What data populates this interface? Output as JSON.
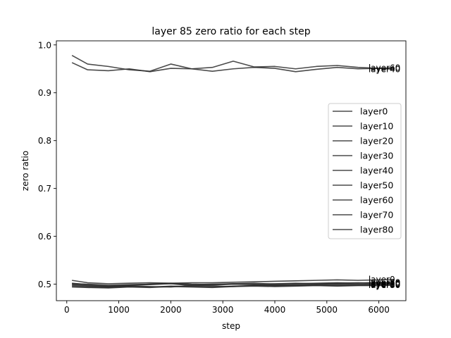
{
  "chart_data": {
    "type": "line",
    "title": "layer 85 zero ratio for each step",
    "xlabel": "step",
    "ylabel": "zero ratio",
    "xlim": [
      -200,
      6520
    ],
    "ylim": [
      0.4655,
      1.0085
    ],
    "xticks": [
      0,
      1000,
      2000,
      3000,
      4000,
      5000,
      6000
    ],
    "yticks": [
      0.5,
      0.6,
      0.7,
      0.8,
      0.9,
      1.0
    ],
    "ytick_labels": [
      "0.5",
      "0.6",
      "0.7",
      "0.8",
      "0.9",
      "1.0"
    ],
    "grid": false,
    "legend_position": "center-right",
    "line_color": "#2b2b2b",
    "series": [
      {
        "name": "layer0",
        "end_label": "layer0",
        "x": [
          100,
          400,
          800,
          1200,
          1600,
          2000,
          2400,
          2800,
          3200,
          3600,
          4000,
          4400,
          4800,
          5200,
          5600,
          6000,
          6300
        ],
        "y": [
          0.508,
          0.503,
          0.501,
          0.502,
          0.503,
          0.502,
          0.503,
          0.503,
          0.504,
          0.505,
          0.506,
          0.507,
          0.508,
          0.509,
          0.508,
          0.509,
          0.51
        ]
      },
      {
        "name": "layer10",
        "end_label": "layer10",
        "x": [
          100,
          400,
          800,
          1200,
          1600,
          2000,
          2400,
          2800,
          3200,
          3600,
          4000,
          4400,
          4800,
          5200,
          5600,
          6000,
          6300
        ],
        "y": [
          0.496,
          0.494,
          0.493,
          0.495,
          0.494,
          0.496,
          0.495,
          0.494,
          0.496,
          0.497,
          0.496,
          0.497,
          0.498,
          0.497,
          0.498,
          0.499,
          0.5
        ]
      },
      {
        "name": "layer20",
        "end_label": "layer20",
        "x": [
          100,
          400,
          800,
          1200,
          1600,
          2000,
          2400,
          2800,
          3200,
          3600,
          4000,
          4400,
          4800,
          5200,
          5600,
          6000,
          6300
        ],
        "y": [
          0.502,
          0.499,
          0.496,
          0.497,
          0.499,
          0.501,
          0.497,
          0.498,
          0.5,
          0.499,
          0.498,
          0.499,
          0.5,
          0.501,
          0.5,
          0.501,
          0.501
        ]
      },
      {
        "name": "layer30",
        "end_label": "layer30",
        "x": [
          100,
          400,
          800,
          1200,
          1600,
          2000,
          2400,
          2800,
          3200,
          3600,
          4000,
          4400,
          4800,
          5200,
          5600,
          6000,
          6300
        ],
        "y": [
          0.5,
          0.497,
          0.495,
          0.498,
          0.5,
          0.502,
          0.5,
          0.499,
          0.501,
          0.502,
          0.5,
          0.501,
          0.502,
          0.503,
          0.502,
          0.504,
          0.503
        ]
      },
      {
        "name": "layer40",
        "end_label": "layer40",
        "x": [
          100,
          400,
          800,
          1200,
          1600,
          2000,
          2400,
          2800,
          3200,
          3600,
          4000,
          4400,
          4800,
          5200,
          5600,
          6000,
          6300
        ],
        "y": [
          0.963,
          0.948,
          0.946,
          0.95,
          0.944,
          0.951,
          0.95,
          0.945,
          0.95,
          0.953,
          0.951,
          0.944,
          0.949,
          0.953,
          0.95,
          0.951,
          0.949
        ]
      },
      {
        "name": "layer50",
        "end_label": "layer50",
        "x": [
          100,
          400,
          800,
          1200,
          1600,
          2000,
          2400,
          2800,
          3200,
          3600,
          4000,
          4400,
          4800,
          5200,
          5600,
          6000,
          6300
        ],
        "y": [
          0.498,
          0.496,
          0.494,
          0.496,
          0.495,
          0.494,
          0.497,
          0.496,
          0.495,
          0.497,
          0.498,
          0.497,
          0.498,
          0.499,
          0.498,
          0.498,
          0.499
        ]
      },
      {
        "name": "layer60",
        "end_label": "layer60",
        "x": [
          100,
          400,
          800,
          1200,
          1600,
          2000,
          2400,
          2800,
          3200,
          3600,
          4000,
          4400,
          4800,
          5200,
          5600,
          6000,
          6300
        ],
        "y": [
          0.978,
          0.96,
          0.955,
          0.948,
          0.945,
          0.96,
          0.95,
          0.953,
          0.966,
          0.954,
          0.955,
          0.95,
          0.955,
          0.957,
          0.953,
          0.951,
          0.952
        ]
      },
      {
        "name": "layer70",
        "end_label": "layer70",
        "x": [
          100,
          400,
          800,
          1200,
          1600,
          2000,
          2400,
          2800,
          3200,
          3600,
          4000,
          4400,
          4800,
          5200,
          5600,
          6000,
          6300
        ],
        "y": [
          0.501,
          0.5,
          0.498,
          0.499,
          0.5,
          0.501,
          0.499,
          0.5,
          0.501,
          0.5,
          0.501,
          0.502,
          0.501,
          0.502,
          0.503,
          0.502,
          0.503
        ]
      },
      {
        "name": "layer80",
        "end_label": "layer80",
        "x": [
          100,
          400,
          800,
          1200,
          1600,
          2000,
          2400,
          2800,
          3200,
          3600,
          4000,
          4400,
          4800,
          5200,
          5600,
          6000,
          6300
        ],
        "y": [
          0.494,
          0.493,
          0.492,
          0.494,
          0.493,
          0.495,
          0.494,
          0.493,
          0.495,
          0.496,
          0.495,
          0.496,
          0.497,
          0.496,
          0.497,
          0.497,
          0.498
        ]
      }
    ]
  }
}
